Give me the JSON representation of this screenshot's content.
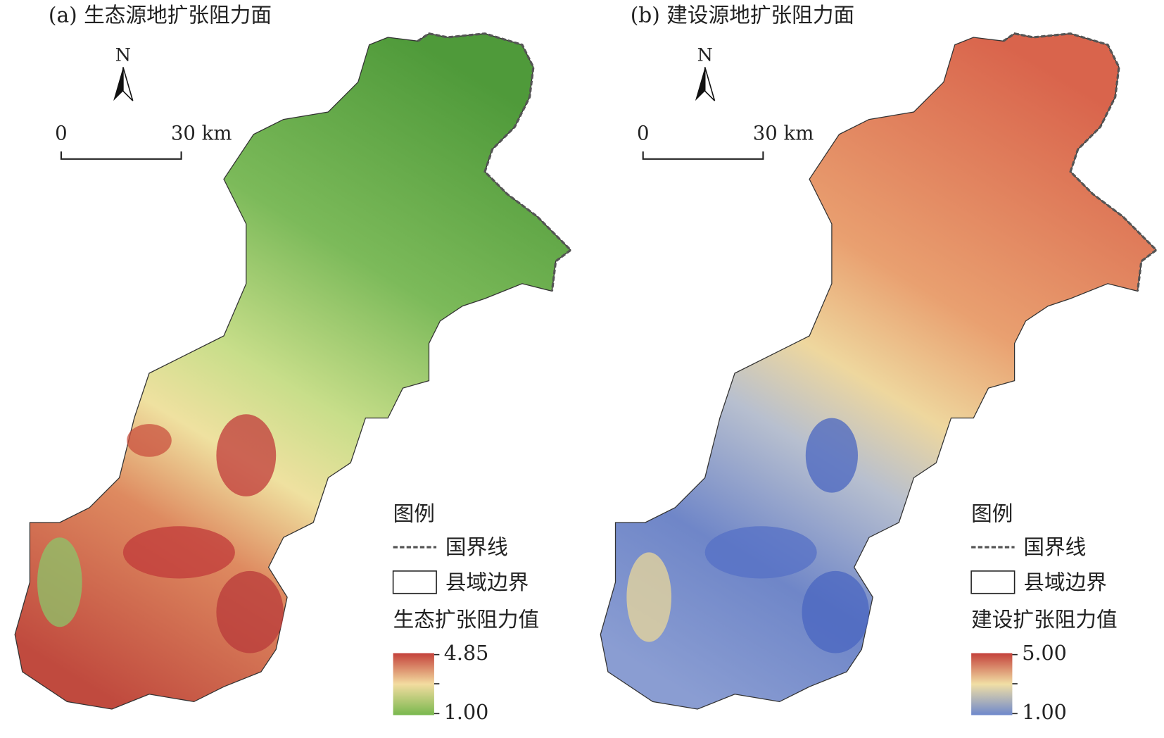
{
  "panels": [
    {
      "title": "(a) 生态源地扩张阻力面",
      "north": "N",
      "scale": {
        "start": "0",
        "end": "30 km"
      },
      "legend": {
        "title": "图例",
        "border": "国界线",
        "county": "县域边界",
        "ramp_title": "生态扩张阻力值",
        "max": "4.85",
        "min": "1.00"
      }
    },
    {
      "title": "(b) 建设源地扩张阻力面",
      "north": "N",
      "scale": {
        "start": "0",
        "end": "30 km"
      },
      "legend": {
        "title": "图例",
        "border": "国界线",
        "county": "县域边界",
        "ramp_title": "建设扩张阻力值",
        "max": "5.00",
        "min": "1.00"
      }
    }
  ]
}
